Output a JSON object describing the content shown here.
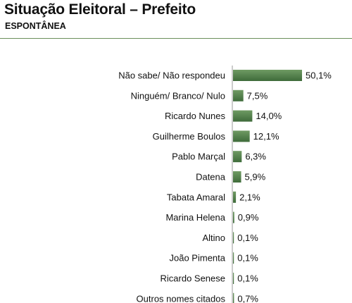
{
  "header": {
    "title": "Situação Eleitoral – Prefeito",
    "subtitle": "ESPONTÂNEA"
  },
  "colors": {
    "bar": "#3e6b3a",
    "bar_light": "#6f9a63",
    "rule": "#6b8f5a",
    "axis": "#9a9a9a"
  },
  "chart_data": {
    "type": "bar",
    "orientation": "horizontal",
    "title": "Situação Eleitoral – Prefeito",
    "subtitle": "ESPONTÂNEA",
    "categories": [
      "Não sabe/ Não respondeu",
      "Ninguém/ Branco/ Nulo",
      "Ricardo Nunes",
      "Guilherme Boulos",
      "Pablo Marçal",
      "Datena",
      "Tabata Amaral",
      "Marina Helena",
      "Altino",
      "João Pimenta",
      "Ricardo Senese",
      "Outros nomes citados"
    ],
    "values": [
      50.1,
      7.5,
      14.0,
      12.1,
      6.3,
      5.9,
      2.1,
      0.9,
      0.1,
      0.1,
      0.1,
      0.7
    ],
    "value_labels": [
      "50,1%",
      "7,5%",
      "14,0%",
      "12,1%",
      "6,3%",
      "5,9%",
      "2,1%",
      "0,9%",
      "0,1%",
      "0,1%",
      "0,1%",
      "0,7%"
    ],
    "unit": "%",
    "xlim": [
      0,
      50.1
    ],
    "grid": false,
    "legend": "none"
  }
}
